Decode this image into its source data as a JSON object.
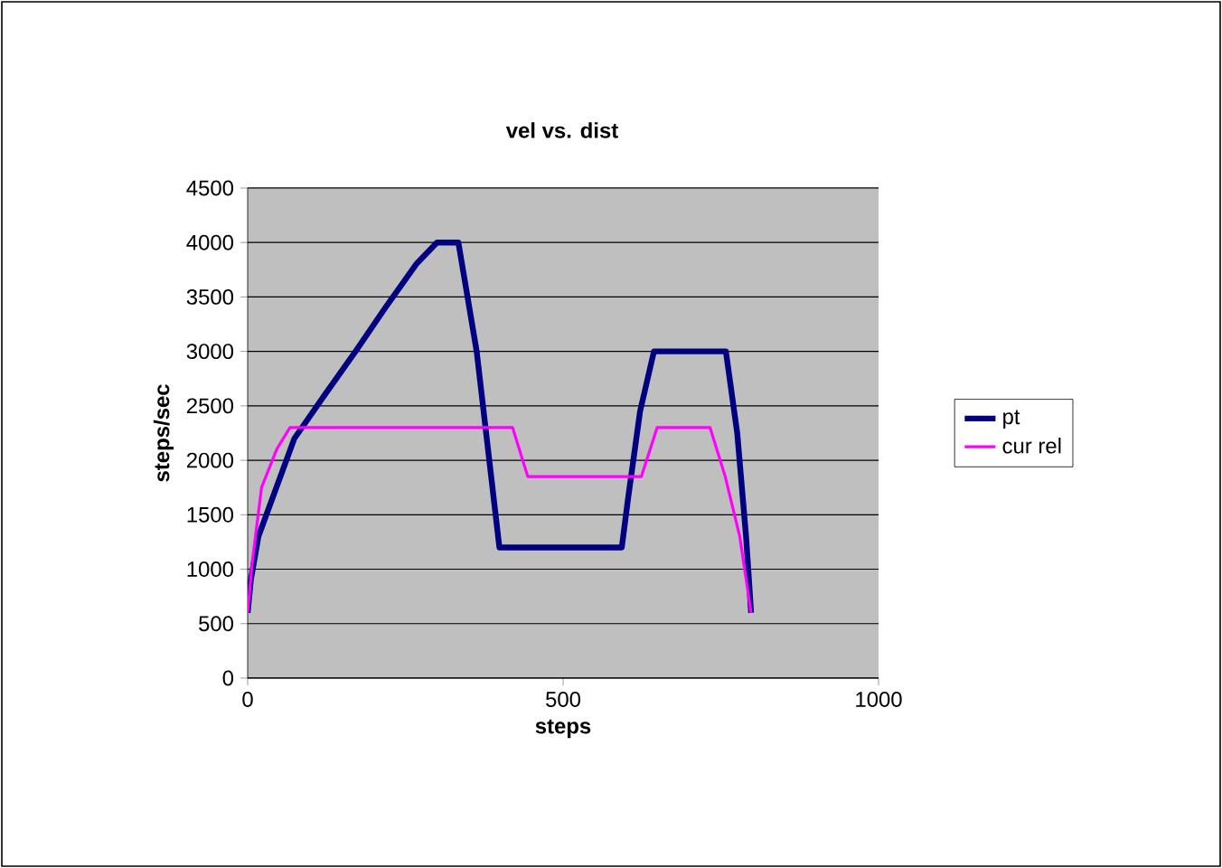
{
  "chart_data": {
    "type": "line",
    "title": "vel vs. dist",
    "xlabel": "steps",
    "ylabel": "steps/sec",
    "xlim": [
      0,
      1000
    ],
    "xticks": [
      0,
      500,
      1000
    ],
    "ylim": [
      0,
      4500
    ],
    "yticks": [
      0,
      500,
      1000,
      1500,
      2000,
      2500,
      3000,
      3500,
      4000,
      4500
    ],
    "grid": "y",
    "legend": "right",
    "series": [
      {
        "name": "pt",
        "color": "#000080",
        "x": [
          0,
          5,
          17,
          74,
          122,
          171,
          218,
          267,
          300,
          334,
          363,
          382,
          399,
          593,
          603,
          622,
          644,
          758,
          776,
          790,
          798
        ],
        "values": [
          600,
          900,
          1300,
          2200,
          2600,
          3000,
          3400,
          3800,
          4000,
          4000,
          3000,
          2050,
          1200,
          1200,
          1650,
          2450,
          3000,
          3000,
          2250,
          1300,
          600
        ]
      },
      {
        "name": "cur rel",
        "color": "#ff00ff",
        "x": [
          0,
          7,
          22,
          46,
          67,
          420,
          444,
          624,
          649,
          733,
          757,
          780,
          798
        ],
        "values": [
          600,
          1050,
          1750,
          2100,
          2300,
          2300,
          1850,
          1850,
          2300,
          2300,
          1850,
          1300,
          600
        ]
      }
    ]
  }
}
